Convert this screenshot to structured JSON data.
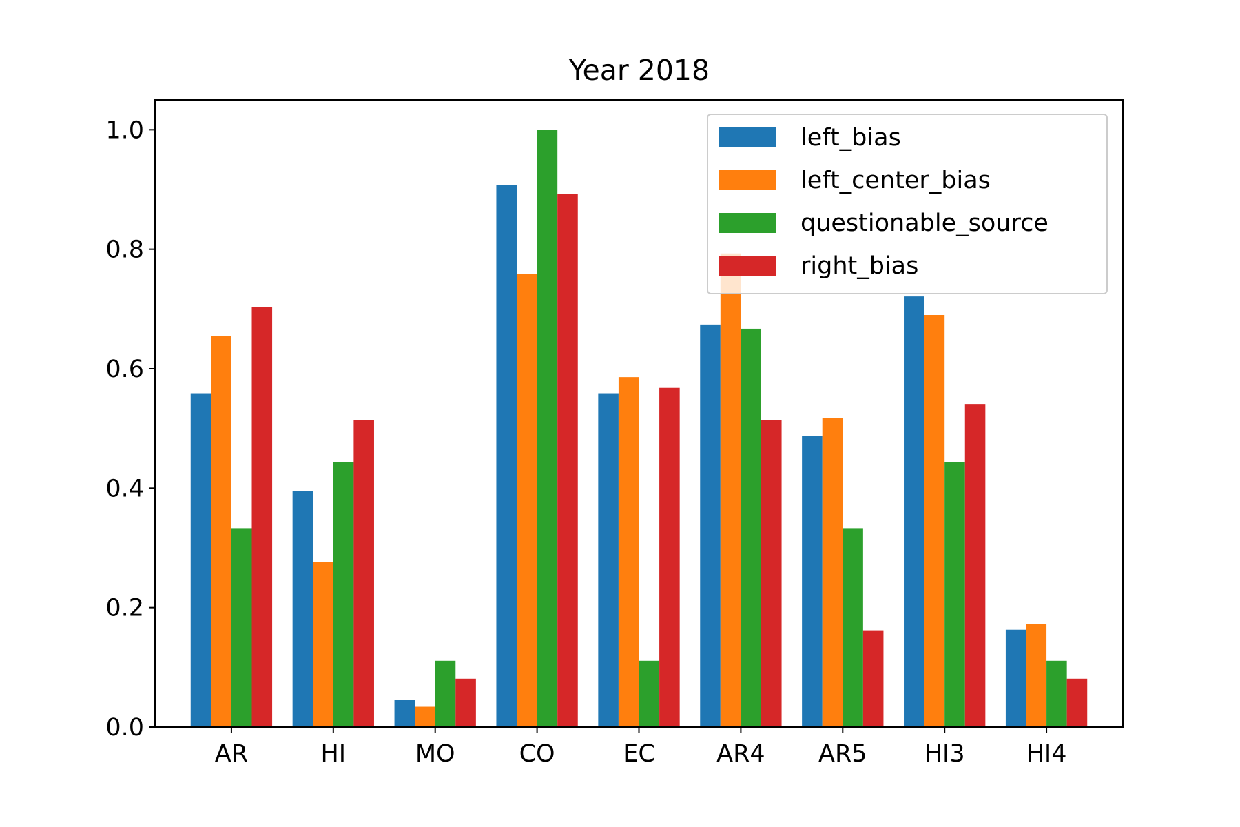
{
  "chart_data": {
    "type": "bar",
    "title": "Year 2018",
    "xlabel": "",
    "ylabel": "",
    "categories": [
      "AR",
      "HI",
      "MO",
      "CO",
      "EC",
      "AR4",
      "AR5",
      "HI3",
      "HI4"
    ],
    "ylim": [
      0,
      1.05
    ],
    "yticks": [
      0.0,
      0.2,
      0.4,
      0.6,
      0.8,
      1.0
    ],
    "ytick_labels": [
      "0.0",
      "0.2",
      "0.4",
      "0.6",
      "0.8",
      "1.0"
    ],
    "grid": false,
    "legend_position": "top-right",
    "series": [
      {
        "name": "left_bias",
        "color": "#1f77b4",
        "values": [
          0.559,
          0.395,
          0.046,
          0.907,
          0.559,
          0.674,
          0.488,
          0.721,
          0.163
        ]
      },
      {
        "name": "left_center_bias",
        "color": "#ff7f0e",
        "values": [
          0.655,
          0.276,
          0.034,
          0.759,
          0.586,
          0.793,
          0.517,
          0.69,
          0.172
        ]
      },
      {
        "name": "questionable_source",
        "color": "#2ca02c",
        "values": [
          0.333,
          0.444,
          0.111,
          1.0,
          0.111,
          0.667,
          0.333,
          0.444,
          0.111
        ]
      },
      {
        "name": "right_bias",
        "color": "#d62728",
        "values": [
          0.703,
          0.514,
          0.081,
          0.892,
          0.568,
          0.514,
          0.162,
          0.541,
          0.081
        ]
      }
    ]
  }
}
